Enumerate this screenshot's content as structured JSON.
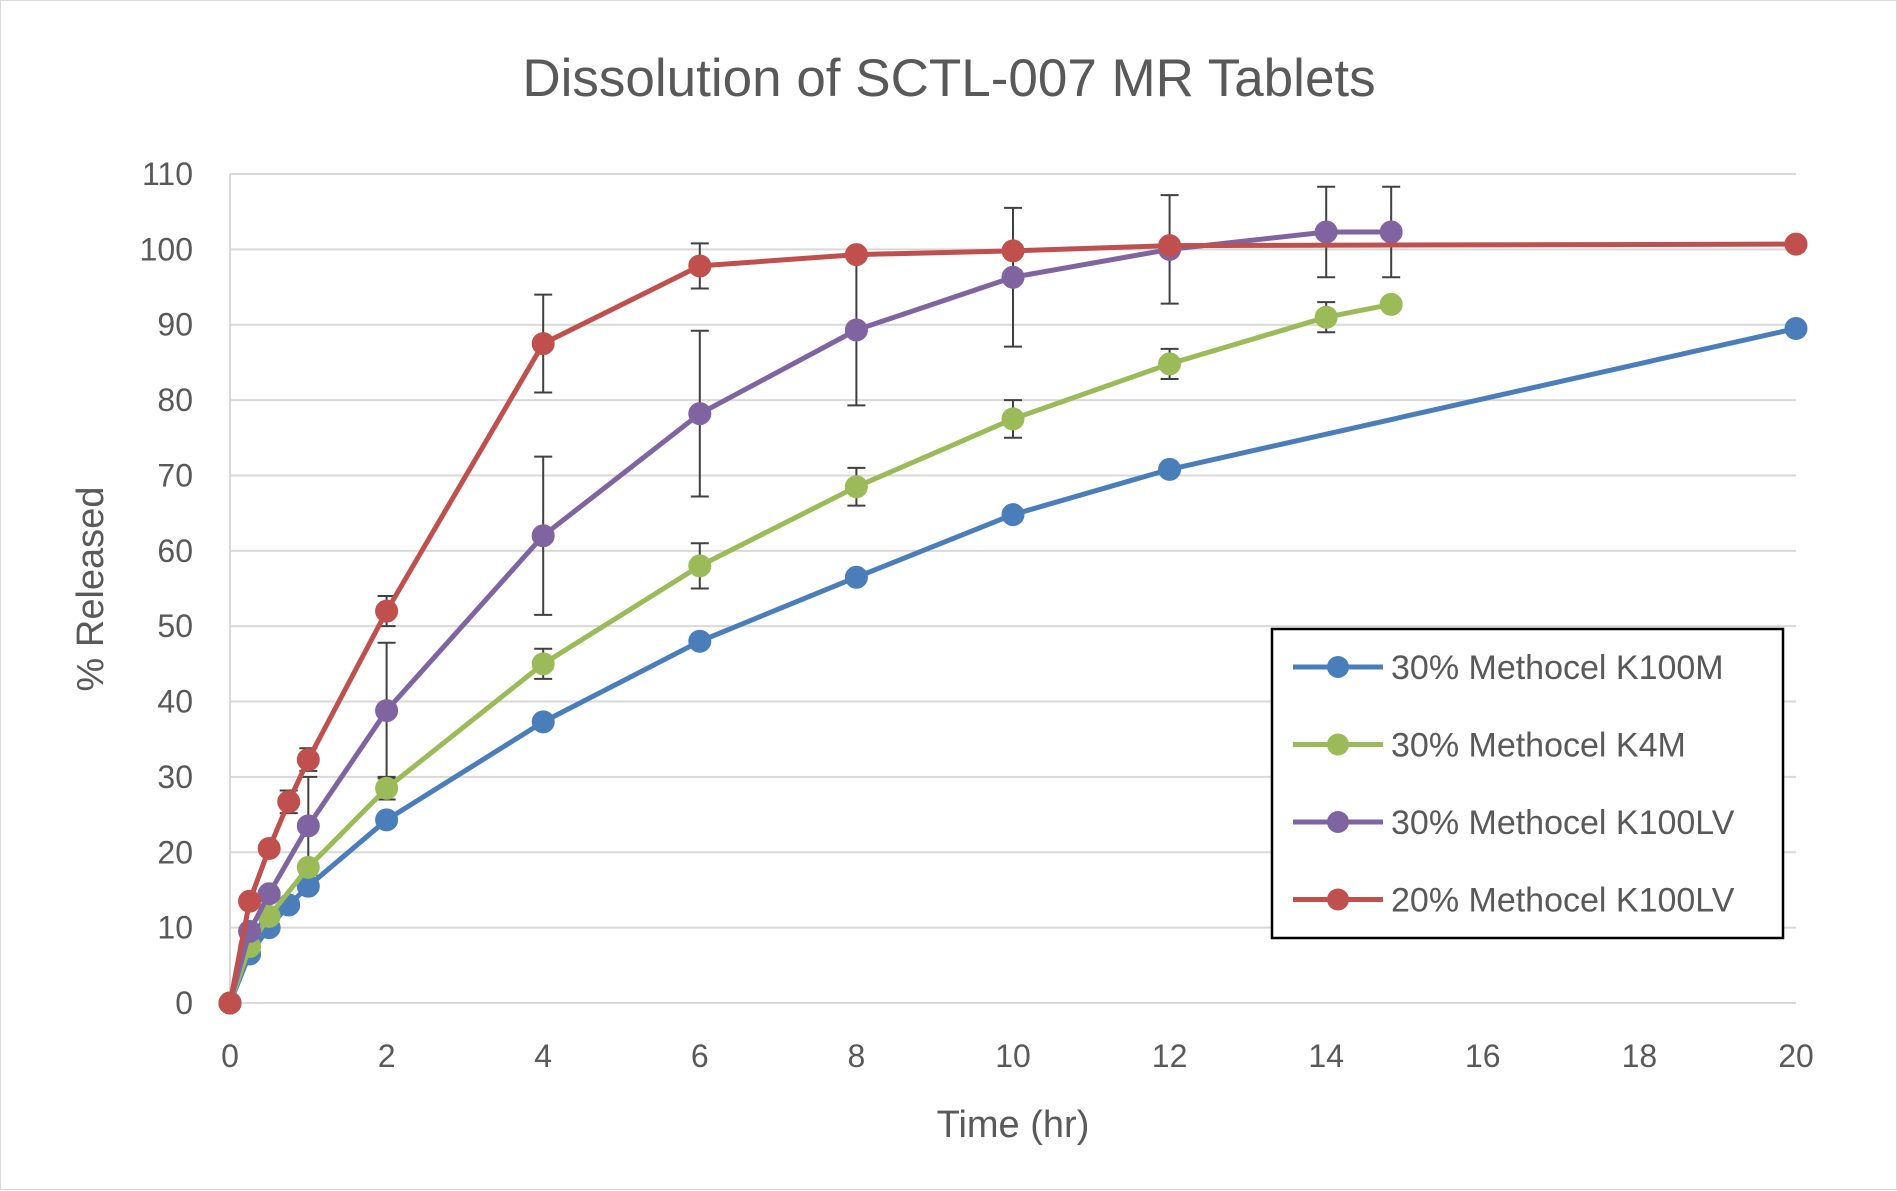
{
  "chart_data": {
    "type": "line",
    "title": "Dissolution of SCTL-007 MR Tablets",
    "xlabel": "Time (hr)",
    "ylabel": "% Released",
    "xlim": [
      0,
      20
    ],
    "ylim": [
      0,
      110
    ],
    "x_ticks": [
      "0",
      "2",
      "4",
      "6",
      "8",
      "10",
      "12",
      "14",
      "16",
      "18",
      "20"
    ],
    "y_ticks": [
      "0",
      "10",
      "20",
      "30",
      "40",
      "50",
      "60",
      "70",
      "80",
      "90",
      "100",
      "110"
    ],
    "grid": "horizontal",
    "legend_position": "right",
    "series": [
      {
        "name": "30% Methocel K100M",
        "color": "#4a7ebb",
        "points": [
          [
            0,
            0
          ],
          [
            0.25,
            6.5
          ],
          [
            0.5,
            10
          ],
          [
            0.75,
            13
          ],
          [
            1,
            15.5
          ],
          [
            2,
            24.3
          ],
          [
            4,
            37.3
          ],
          [
            6,
            48
          ],
          [
            8,
            56.5
          ],
          [
            10,
            64.8
          ],
          [
            12,
            70.8
          ],
          [
            20,
            89.5
          ]
        ],
        "errors": []
      },
      {
        "name": "30% Methocel K4M",
        "color": "#9bbb59",
        "points": [
          [
            0,
            0
          ],
          [
            0.25,
            7.5
          ],
          [
            0.5,
            11.5
          ],
          [
            1,
            18
          ],
          [
            2,
            28.5
          ],
          [
            4,
            45
          ],
          [
            6,
            58
          ],
          [
            8,
            68.5
          ],
          [
            10,
            77.5
          ],
          [
            12,
            84.8
          ],
          [
            14,
            91
          ],
          [
            14.83,
            92.7
          ]
        ],
        "errors": [
          null,
          null,
          null,
          null,
          1.5,
          2,
          3,
          2.5,
          2.5,
          2,
          2,
          0.5
        ]
      },
      {
        "name": "30% Methocel K100LV",
        "color": "#8064a2",
        "points": [
          [
            0,
            0
          ],
          [
            0.25,
            9.5
          ],
          [
            0.5,
            14.5
          ],
          [
            1,
            23.5
          ],
          [
            2,
            38.8
          ],
          [
            4,
            62
          ],
          [
            6,
            78.2
          ],
          [
            8,
            89.3
          ],
          [
            10,
            96.3
          ],
          [
            12,
            100
          ],
          [
            14,
            102.3
          ],
          [
            14.83,
            102.3
          ]
        ],
        "errors": [
          null,
          null,
          null,
          6.5,
          9,
          10.5,
          11,
          10,
          9.2,
          7.2,
          6,
          6
        ]
      },
      {
        "name": "20% Methocel K100LV",
        "color": "#c0504d",
        "points": [
          [
            0,
            0
          ],
          [
            0.25,
            13.5
          ],
          [
            0.5,
            20.5
          ],
          [
            0.75,
            26.7
          ],
          [
            1,
            32.3
          ],
          [
            2,
            52
          ],
          [
            4,
            87.5
          ],
          [
            6,
            97.8
          ],
          [
            8,
            99.3
          ],
          [
            10,
            99.8
          ],
          [
            12,
            100.5
          ],
          [
            20,
            100.7
          ]
        ],
        "errors": [
          null,
          null,
          null,
          1.5,
          1.5,
          2,
          6.5,
          3,
          null,
          null,
          null,
          null
        ]
      }
    ]
  }
}
